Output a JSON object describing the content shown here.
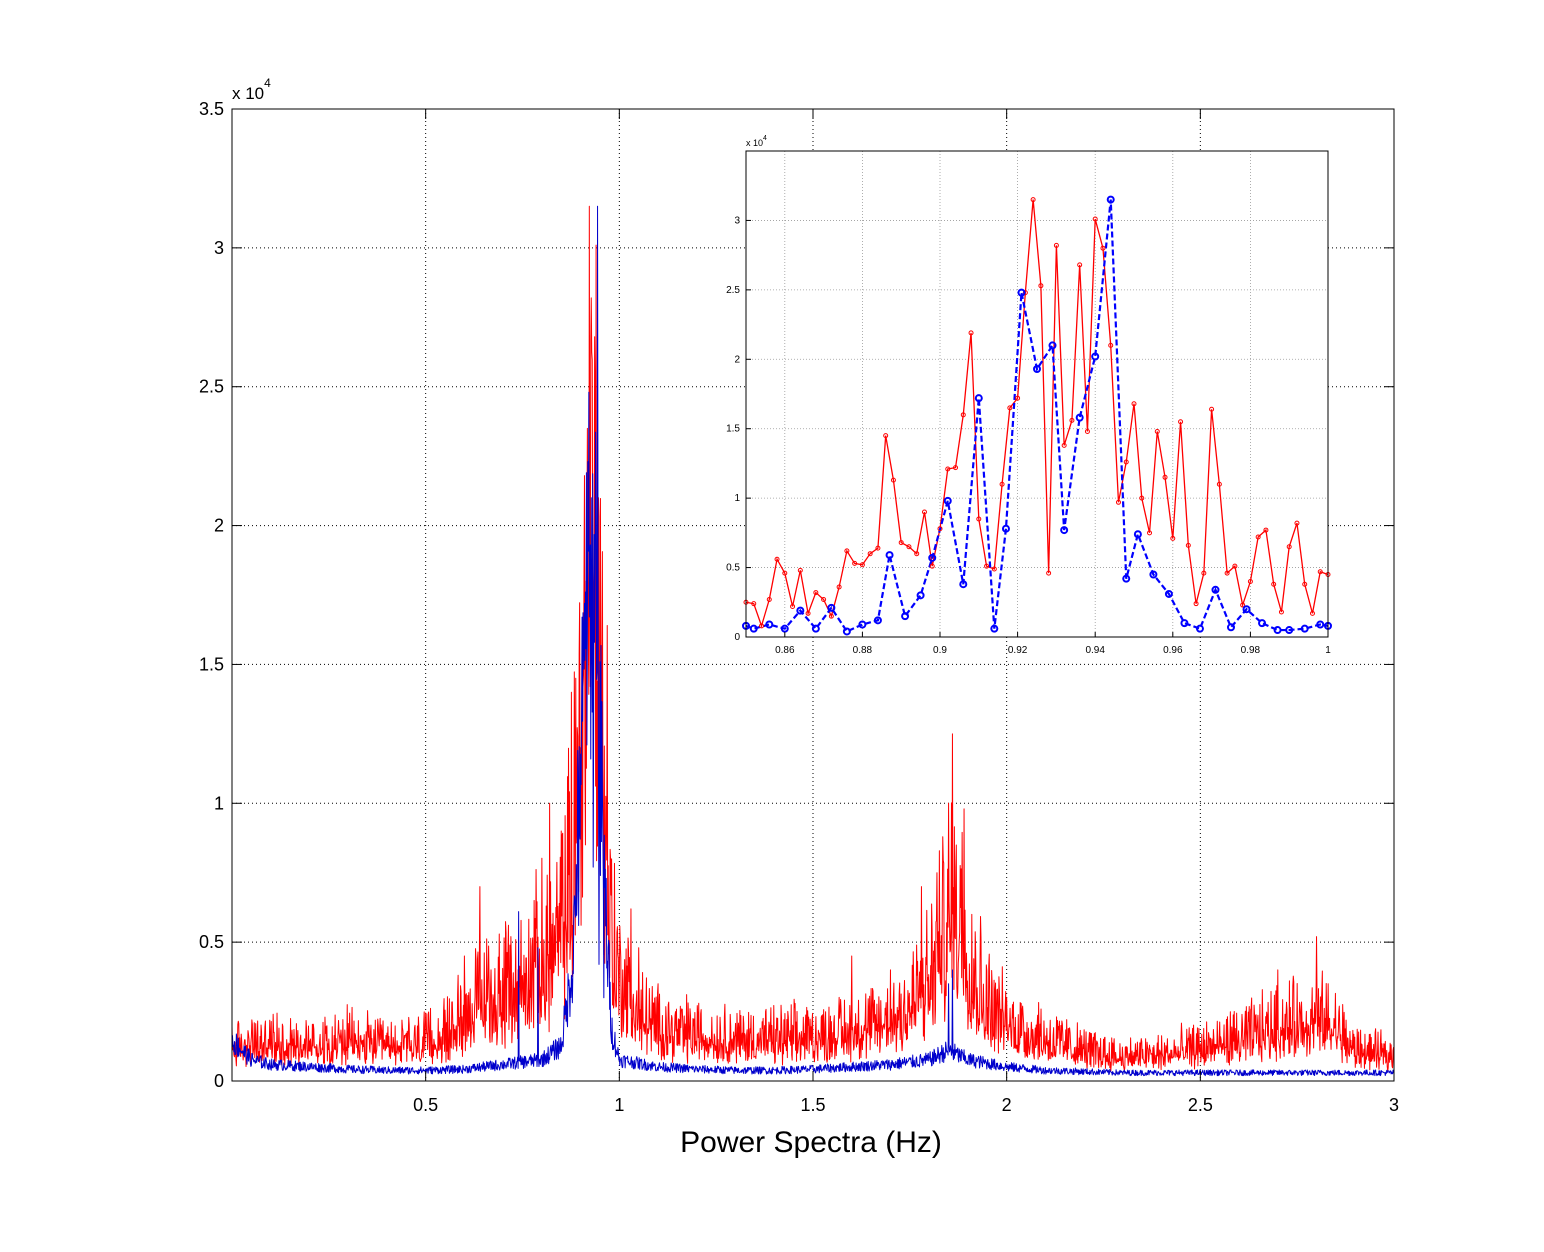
{
  "chart_data": [
    {
      "type": "line",
      "title": "",
      "xlabel": "Power Spectra (Hz)",
      "ylabel": "",
      "y_multiplier_label": {
        "base": "x 10",
        "exponent": "4"
      },
      "xlim": [
        0,
        3
      ],
      "ylim": [
        0,
        35000
      ],
      "x_ticks": [
        0.5,
        1,
        1.5,
        2,
        2.5,
        3
      ],
      "x_tick_labels": [
        "0.5",
        "1",
        "1.5",
        "2",
        "2.5",
        "3"
      ],
      "y_ticks": [
        0,
        5000,
        10000,
        15000,
        20000,
        25000,
        30000,
        35000
      ],
      "y_tick_labels": [
        "0",
        "0.5",
        "1",
        "1.5",
        "2",
        "2.5",
        "3",
        "3.5"
      ],
      "grid": true,
      "colors": {
        "series_red": "#ff0000",
        "series_blue": "#0000cc"
      },
      "series": [
        {
          "color": "#ff0000",
          "envelope": {
            "x": [
              0.0,
              0.1,
              0.2,
              0.3,
              0.4,
              0.5,
              0.55,
              0.6,
              0.65,
              0.7,
              0.75,
              0.8,
              0.85,
              0.88,
              0.9,
              0.92,
              0.94,
              0.96,
              0.98,
              1.0,
              1.05,
              1.1,
              1.2,
              1.3,
              1.4,
              1.5,
              1.6,
              1.7,
              1.75,
              1.8,
              1.85,
              1.88,
              1.9,
              1.95,
              2.0,
              2.1,
              2.2,
              2.3,
              2.4,
              2.5,
              2.6,
              2.7,
              2.8,
              2.85,
              2.9,
              3.0
            ],
            "y": [
              1800,
              2000,
              2000,
              2100,
              1800,
              2000,
              2300,
              3500,
              4200,
              4500,
              5200,
              6200,
              7500,
              11000,
              18000,
              26000,
              27000,
              15000,
              7000,
              5500,
              3500,
              2800,
              2400,
              2200,
              2200,
              2300,
              2600,
              3200,
              4000,
              5200,
              8000,
              9500,
              6500,
              4000,
              3000,
              2300,
              1600,
              1300,
              1400,
              1700,
              2200,
              2800,
              3200,
              2800,
              1600,
              1300
            ]
          },
          "peaks": [
            {
              "x": 0.6,
              "y": 4500
            },
            {
              "x": 0.64,
              "y": 7000
            },
            {
              "x": 0.72,
              "y": 5200
            },
            {
              "x": 0.78,
              "y": 6500
            },
            {
              "x": 0.82,
              "y": 10000
            },
            {
              "x": 0.85,
              "y": 9000
            },
            {
              "x": 0.876,
              "y": 14000
            },
            {
              "x": 0.887,
              "y": 14500
            },
            {
              "x": 0.9,
              "y": 12000
            },
            {
              "x": 0.91,
              "y": 21800
            },
            {
              "x": 0.918,
              "y": 23500
            },
            {
              "x": 0.923,
              "y": 31500
            },
            {
              "x": 0.928,
              "y": 28200
            },
            {
              "x": 0.936,
              "y": 26800
            },
            {
              "x": 0.94,
              "y": 30100
            },
            {
              "x": 0.946,
              "y": 21000
            },
            {
              "x": 0.955,
              "y": 14800
            },
            {
              "x": 0.969,
              "y": 16400
            },
            {
              "x": 0.98,
              "y": 8000
            },
            {
              "x": 1.03,
              "y": 6200
            },
            {
              "x": 1.05,
              "y": 4800
            },
            {
              "x": 1.1,
              "y": 3500
            },
            {
              "x": 1.6,
              "y": 4500
            },
            {
              "x": 1.7,
              "y": 4000
            },
            {
              "x": 1.78,
              "y": 7000
            },
            {
              "x": 1.82,
              "y": 7500
            },
            {
              "x": 1.85,
              "y": 10000
            },
            {
              "x": 1.86,
              "y": 12500
            },
            {
              "x": 1.87,
              "y": 8500
            },
            {
              "x": 1.89,
              "y": 9800
            },
            {
              "x": 1.91,
              "y": 6000
            },
            {
              "x": 2.0,
              "y": 3000
            },
            {
              "x": 2.7,
              "y": 4000
            },
            {
              "x": 2.8,
              "y": 5200
            },
            {
              "x": 2.83,
              "y": 3500
            }
          ]
        },
        {
          "color": "#0000cc",
          "envelope": {
            "x": [
              0.0,
              0.02,
              0.05,
              0.1,
              0.2,
              0.3,
              0.4,
              0.5,
              0.6,
              0.7,
              0.8,
              0.85,
              0.88,
              0.9,
              0.92,
              0.94,
              0.96,
              0.98,
              1.0,
              1.1,
              1.2,
              1.3,
              1.4,
              1.5,
              1.6,
              1.7,
              1.8,
              1.85,
              1.9,
              2.0,
              2.1,
              2.2,
              2.3
            ],
            "y": [
              1700,
              1400,
              900,
              700,
              600,
              500,
              450,
              450,
              500,
              700,
              900,
              1500,
              5000,
              14000,
              20000,
              22000,
              9000,
              2200,
              900,
              600,
              500,
              450,
              450,
              500,
              600,
              700,
              900,
              1300,
              900,
              600,
              450,
              400,
              350
            ]
          },
          "peaks": [
            {
              "x": 0.74,
              "y": 6100
            },
            {
              "x": 0.79,
              "y": 4800
            },
            {
              "x": 0.887,
              "y": 5900
            },
            {
              "x": 0.895,
              "y": 5600
            },
            {
              "x": 0.91,
              "y": 17200
            },
            {
              "x": 0.915,
              "y": 21900
            },
            {
              "x": 0.921,
              "y": 24800
            },
            {
              "x": 0.925,
              "y": 19300
            },
            {
              "x": 0.928,
              "y": 21000
            },
            {
              "x": 0.932,
              "y": 7700
            },
            {
              "x": 0.936,
              "y": 15800
            },
            {
              "x": 0.94,
              "y": 20200
            },
            {
              "x": 0.944,
              "y": 31500
            },
            {
              "x": 0.948,
              "y": 4200
            },
            {
              "x": 0.951,
              "y": 7400
            },
            {
              "x": 0.96,
              "y": 3000
            },
            {
              "x": 0.97,
              "y": 3400
            },
            {
              "x": 1.85,
              "y": 3500
            },
            {
              "x": 1.86,
              "y": 4000
            }
          ]
        }
      ]
    },
    {
      "type": "line",
      "title": "",
      "xlabel": "",
      "ylabel": "",
      "y_multiplier_label": {
        "base": "x 10",
        "exponent": "4"
      },
      "xlim": [
        0.85,
        1.0
      ],
      "ylim": [
        0,
        35000
      ],
      "x_ticks": [
        0.86,
        0.88,
        0.9,
        0.92,
        0.94,
        0.96,
        0.98,
        1.0
      ],
      "x_tick_labels": [
        "0.86",
        "0.88",
        "0.9",
        "0.92",
        "0.94",
        "0.96",
        "0.98",
        "1"
      ],
      "y_ticks": [
        0,
        5000,
        10000,
        15000,
        20000,
        25000,
        30000
      ],
      "y_tick_labels": [
        "0",
        "0.5",
        "1",
        "1.5",
        "2",
        "2.5",
        "3"
      ],
      "grid": true,
      "series": [
        {
          "color": "#ff0000",
          "line_style": "solid",
          "marker": "small-circle",
          "x": [
            0.85,
            0.852,
            0.854,
            0.856,
            0.858,
            0.86,
            0.862,
            0.864,
            0.866,
            0.868,
            0.87,
            0.872,
            0.874,
            0.876,
            0.878,
            0.88,
            0.882,
            0.884,
            0.886,
            0.888,
            0.89,
            0.892,
            0.894,
            0.896,
            0.898,
            0.9,
            0.902,
            0.904,
            0.906,
            0.908,
            0.91,
            0.912,
            0.914,
            0.916,
            0.918,
            0.92,
            0.922,
            0.924,
            0.926,
            0.928,
            0.93,
            0.932,
            0.934,
            0.936,
            0.938,
            0.94,
            0.942,
            0.944,
            0.946,
            0.948,
            0.95,
            0.952,
            0.954,
            0.956,
            0.958,
            0.96,
            0.962,
            0.964,
            0.966,
            0.968,
            0.97,
            0.972,
            0.974,
            0.976,
            0.978,
            0.98,
            0.982,
            0.984,
            0.986,
            0.988,
            0.99,
            0.992,
            0.994,
            0.996,
            0.998,
            1.0
          ],
          "y": [
            2500,
            2400,
            800,
            2700,
            5600,
            4600,
            2200,
            4800,
            1700,
            3200,
            2700,
            1500,
            3600,
            6200,
            5300,
            5200,
            6000,
            6400,
            14500,
            11300,
            6800,
            6500,
            6000,
            9000,
            5100,
            7800,
            12100,
            12200,
            16000,
            21900,
            8500,
            5100,
            4900,
            11000,
            16500,
            17200,
            24800,
            31500,
            25300,
            4600,
            28200,
            13800,
            15600,
            26800,
            14800,
            30100,
            28000,
            21000,
            9700,
            12600,
            16800,
            10000,
            7500,
            14800,
            11500,
            7100,
            15500,
            6600,
            2400,
            4600,
            16400,
            11000,
            4600,
            5100,
            2300,
            4000,
            7200,
            7700,
            3800,
            1800,
            6500,
            8200,
            3800,
            1700,
            4700,
            4500
          ]
        },
        {
          "color": "#0000ff",
          "line_style": "dashed",
          "marker": "circle",
          "x": [
            0.85,
            0.852,
            0.856,
            0.86,
            0.864,
            0.868,
            0.872,
            0.876,
            0.88,
            0.884,
            0.887,
            0.891,
            0.895,
            0.898,
            0.902,
            0.906,
            0.91,
            0.914,
            0.917,
            0.921,
            0.925,
            0.929,
            0.932,
            0.936,
            0.94,
            0.944,
            0.948,
            0.951,
            0.955,
            0.959,
            0.963,
            0.967,
            0.971,
            0.975,
            0.979,
            0.983,
            0.987,
            0.99,
            0.994,
            0.998,
            1.0
          ],
          "y": [
            800,
            600,
            900,
            600,
            1900,
            600,
            2100,
            400,
            900,
            1200,
            5900,
            1500,
            3000,
            5700,
            9800,
            3800,
            17200,
            600,
            7800,
            24800,
            19300,
            21000,
            7700,
            15800,
            20200,
            31500,
            4200,
            7400,
            4500,
            3100,
            1000,
            600,
            3400,
            700,
            2000,
            1000,
            500,
            500,
            600,
            900,
            800
          ]
        }
      ]
    }
  ]
}
